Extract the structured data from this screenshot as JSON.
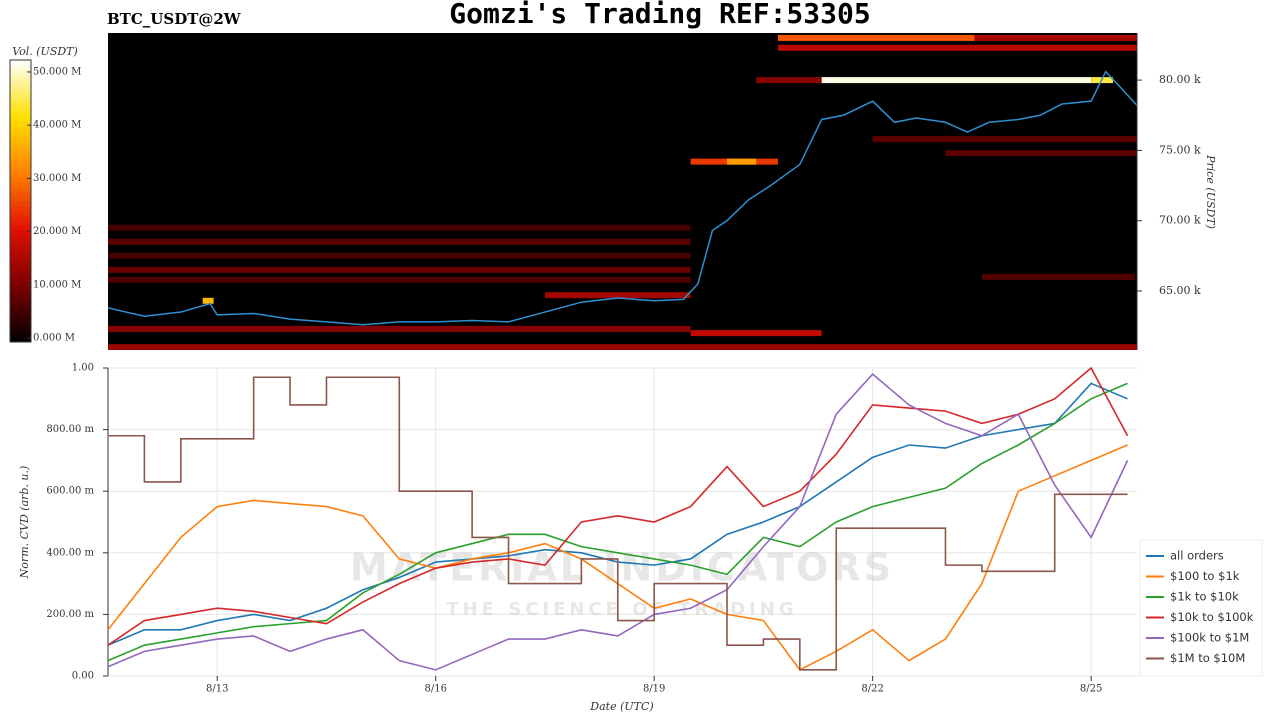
{
  "chart_data": [
    {
      "type": "heatmap",
      "title": "Gomzi's Trading REF:53305",
      "subtitle": "BTC_USDT@2W",
      "ylabel": "Price (USDT)",
      "xlim": [
        11.5,
        25.63
      ],
      "ylim": [
        60800,
        83350
      ],
      "yticks": [
        {
          "value": 65000,
          "label": "65.00 k"
        },
        {
          "value": 70000,
          "label": "70.00 k"
        },
        {
          "value": 75000,
          "label": "75.00 k"
        },
        {
          "value": 80000,
          "label": "80.00 k"
        }
      ],
      "colorbar": {
        "title": "Vol. (USDT)",
        "lim": [
          0,
          53000000
        ],
        "colorscale": [
          "#000000",
          "#7a0000",
          "#e01000",
          "#ff8000",
          "#ffe000",
          "#ffffff"
        ],
        "ticks": [
          {
            "value": 0,
            "label": "0.000 M"
          },
          {
            "value": 10000000,
            "label": "10.000 M"
          },
          {
            "value": 20000000,
            "label": "20.000 M"
          },
          {
            "value": 30000000,
            "label": "30.000 M"
          },
          {
            "value": 40000000,
            "label": "40.000 M"
          },
          {
            "value": 50000000,
            "label": "50.000 M"
          }
        ]
      },
      "cells": [
        {
          "x0": 11.5,
          "x1": 19.5,
          "price": 69500,
          "volume": 6000000
        },
        {
          "x0": 11.5,
          "x1": 19.5,
          "price": 68500,
          "volume": 8000000
        },
        {
          "x0": 11.5,
          "x1": 19.5,
          "price": 67500,
          "volume": 6000000
        },
        {
          "x0": 11.5,
          "x1": 19.5,
          "price": 66500,
          "volume": 9000000
        },
        {
          "x0": 11.5,
          "x1": 19.5,
          "price": 65800,
          "volume": 7000000
        },
        {
          "x0": 11.5,
          "x1": 19.5,
          "price": 62300,
          "volume": 12000000
        },
        {
          "x0": 11.5,
          "x1": 25.63,
          "price": 61000,
          "volume": 14000000
        },
        {
          "x0": 19.5,
          "x1": 21.3,
          "price": 62000,
          "volume": 18000000
        },
        {
          "x0": 17.5,
          "x1": 19.5,
          "price": 64700,
          "volume": 15000000
        },
        {
          "x0": 12.8,
          "x1": 12.95,
          "price": 64300,
          "volume": 38000000
        },
        {
          "x0": 19.5,
          "x1": 20.7,
          "price": 74200,
          "volume": 25000000
        },
        {
          "x0": 20.0,
          "x1": 20.4,
          "price": 74200,
          "volume": 35000000
        },
        {
          "x0": 20.7,
          "x1": 23.4,
          "price": 83000,
          "volume": 28000000
        },
        {
          "x0": 23.4,
          "x1": 25.63,
          "price": 83000,
          "volume": 15000000
        },
        {
          "x0": 20.7,
          "x1": 25.63,
          "price": 82300,
          "volume": 17000000
        },
        {
          "x0": 20.4,
          "x1": 21.3,
          "price": 80000,
          "volume": 12000000
        },
        {
          "x0": 21.3,
          "x1": 25.0,
          "price": 80000,
          "volume": 52000000
        },
        {
          "x0": 25.0,
          "x1": 25.3,
          "price": 80000,
          "volume": 45000000
        },
        {
          "x0": 22.0,
          "x1": 25.63,
          "price": 75800,
          "volume": 8000000
        },
        {
          "x0": 23.0,
          "x1": 25.63,
          "price": 74800,
          "volume": 8000000
        },
        {
          "x0": 23.5,
          "x1": 25.6,
          "price": 66000,
          "volume": 7000000
        }
      ],
      "series": [
        {
          "color": "#2f8fd0",
          "x": [
            11.5,
            12,
            12.5,
            12.9,
            13,
            13.5,
            14,
            14.5,
            15,
            15.5,
            16,
            16.5,
            17,
            17.5,
            18,
            18.5,
            19,
            19.4,
            19.6,
            19.8,
            20,
            20.3,
            20.6,
            21,
            21.3,
            21.6,
            22,
            22.3,
            22.6,
            23,
            23.3,
            23.6,
            24,
            24.3,
            24.6,
            25,
            25.2,
            25.4,
            25.63
          ],
          "values": [
            63800,
            63200,
            63500,
            64100,
            63300,
            63400,
            63000,
            62800,
            62600,
            62800,
            62800,
            62900,
            62800,
            63500,
            64200,
            64500,
            64300,
            64400,
            65500,
            69300,
            70000,
            71500,
            72500,
            74000,
            77200,
            77500,
            78500,
            77000,
            77300,
            77000,
            76300,
            77000,
            77200,
            77500,
            78300,
            78500,
            80600,
            79500,
            78200
          ]
        }
      ]
    },
    {
      "type": "line",
      "xlabel": "Date (UTC)",
      "ylabel": "Norm. CVD (arb. u.)",
      "grid": true,
      "legend": "right",
      "watermark": [
        "MATERIAL INDICATORS",
        "THE SCIENCE OF TRADING"
      ],
      "xlim": [
        11.5,
        25.63
      ],
      "ylim": [
        0,
        1
      ],
      "xticks": [
        {
          "value": 13,
          "label": "8/13"
        },
        {
          "value": 16,
          "label": "8/16"
        },
        {
          "value": 19,
          "label": "8/19"
        },
        {
          "value": 22,
          "label": "8/22"
        },
        {
          "value": 25,
          "label": "8/25"
        }
      ],
      "yticks": [
        {
          "value": 0,
          "label": "0.00"
        },
        {
          "value": 0.2,
          "label": "200.00 m"
        },
        {
          "value": 0.4,
          "label": "400.00 m"
        },
        {
          "value": 0.6,
          "label": "600.00 m"
        },
        {
          "value": 0.8,
          "label": "800.00 m"
        },
        {
          "value": 1,
          "label": "1.00"
        }
      ],
      "x": [
        11.5,
        12,
        12.5,
        13,
        13.5,
        14,
        14.5,
        15,
        15.5,
        16,
        16.5,
        17,
        17.5,
        18,
        18.5,
        19,
        19.5,
        20,
        20.5,
        21,
        21.5,
        22,
        22.5,
        23,
        23.5,
        24,
        24.5,
        25,
        25.5
      ],
      "series": [
        {
          "name": "all orders",
          "color": "#1f77b4",
          "values": [
            0.1,
            0.15,
            0.15,
            0.18,
            0.2,
            0.18,
            0.22,
            0.28,
            0.32,
            0.37,
            0.38,
            0.39,
            0.41,
            0.4,
            0.37,
            0.36,
            0.38,
            0.46,
            0.5,
            0.55,
            0.63,
            0.71,
            0.75,
            0.74,
            0.78,
            0.8,
            0.82,
            0.95,
            0.9
          ]
        },
        {
          "name": "$100 to $1k",
          "color": "#ff7f0e",
          "values": [
            0.15,
            0.3,
            0.45,
            0.55,
            0.57,
            0.56,
            0.55,
            0.52,
            0.38,
            0.35,
            0.38,
            0.4,
            0.43,
            0.38,
            0.3,
            0.22,
            0.25,
            0.2,
            0.18,
            0.02,
            0.08,
            0.15,
            0.05,
            0.12,
            0.3,
            0.6,
            0.65,
            0.7,
            0.75
          ]
        },
        {
          "name": "$1k to $10k",
          "color": "#2ca02c",
          "values": [
            0.05,
            0.1,
            0.12,
            0.14,
            0.16,
            0.17,
            0.18,
            0.27,
            0.33,
            0.4,
            0.43,
            0.46,
            0.46,
            0.42,
            0.4,
            0.38,
            0.36,
            0.33,
            0.45,
            0.42,
            0.5,
            0.55,
            0.58,
            0.61,
            0.69,
            0.75,
            0.82,
            0.9,
            0.95
          ]
        },
        {
          "name": "$10k to $100k",
          "color": "#d62728",
          "values": [
            0.1,
            0.18,
            0.2,
            0.22,
            0.21,
            0.19,
            0.17,
            0.24,
            0.3,
            0.35,
            0.37,
            0.38,
            0.36,
            0.5,
            0.52,
            0.5,
            0.55,
            0.68,
            0.55,
            0.6,
            0.72,
            0.88,
            0.87,
            0.86,
            0.82,
            0.85,
            0.9,
            1.0,
            0.78
          ]
        },
        {
          "name": "$100k to $1M",
          "color": "#9467bd",
          "values": [
            0.03,
            0.08,
            0.1,
            0.12,
            0.13,
            0.08,
            0.12,
            0.15,
            0.05,
            0.02,
            0.07,
            0.12,
            0.12,
            0.15,
            0.13,
            0.2,
            0.22,
            0.28,
            0.42,
            0.55,
            0.85,
            0.98,
            0.88,
            0.82,
            0.78,
            0.85,
            0.62,
            0.45,
            0.7
          ]
        },
        {
          "name": "$1M to $10M",
          "color": "#8c564b",
          "shape": "hv",
          "values": [
            0.78,
            0.63,
            0.77,
            0.77,
            0.97,
            0.88,
            0.97,
            0.97,
            0.6,
            0.6,
            0.45,
            0.3,
            0.3,
            0.38,
            0.18,
            0.3,
            0.3,
            0.1,
            0.12,
            0.02,
            0.48,
            0.48,
            0.48,
            0.36,
            0.34,
            0.34,
            0.59,
            0.59,
            0.59
          ]
        }
      ]
    }
  ]
}
